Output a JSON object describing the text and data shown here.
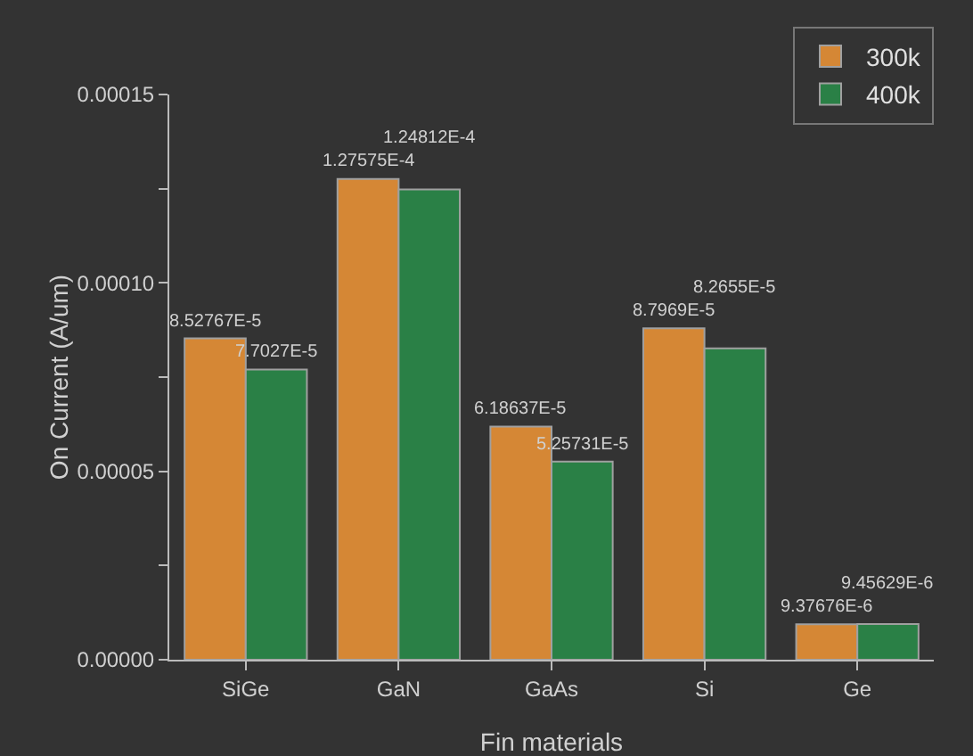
{
  "chart_data": {
    "type": "bar",
    "xlabel": "Fin materials",
    "ylabel": "On Current (A/um)",
    "categories": [
      "SiGe",
      "GaN",
      "GaAs",
      "Si",
      "Ge"
    ],
    "series": [
      {
        "name": "300k",
        "color": "#d58735",
        "values": [
          8.52767e-05,
          0.000127575,
          6.18637e-05,
          8.7969e-05,
          9.37676e-06
        ],
        "value_labels": [
          "8.52767E-5",
          "1.27575E-4",
          "6.18637E-5",
          "8.7969E-5",
          "9.37676E-6"
        ]
      },
      {
        "name": "400k",
        "color": "#2a8046",
        "values": [
          7.7027e-05,
          0.000124812,
          5.25731e-05,
          8.2655e-05,
          9.45629e-06
        ],
        "value_labels": [
          "7.7027E-5",
          "1.24812E-4",
          "5.25731E-5",
          "8.2655E-5",
          "9.45629E-6"
        ]
      }
    ],
    "ylim": [
      0,
      0.00015
    ],
    "yticks": [
      {
        "value": 0,
        "label": "0.00000"
      },
      {
        "value": 2.5e-05,
        "label": null
      },
      {
        "value": 5e-05,
        "label": "0.00005"
      },
      {
        "value": 7.5e-05,
        "label": null
      },
      {
        "value": 0.0001,
        "label": "0.00010"
      },
      {
        "value": 0.000125,
        "label": null
      },
      {
        "value": 0.00015,
        "label": "0.00015"
      }
    ],
    "legend": "top right"
  }
}
